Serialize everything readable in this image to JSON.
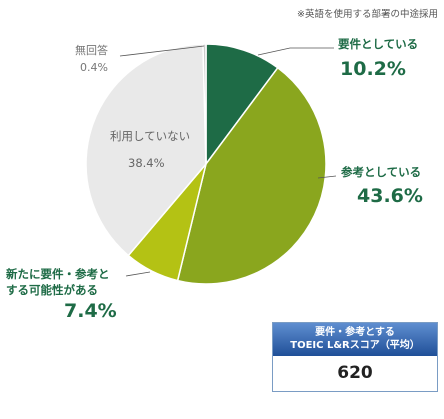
{
  "note": "※英語を使用する部署の中途採用",
  "chart_data": {
    "type": "pie",
    "slices": [
      {
        "label": "要件としている",
        "value": 10.2,
        "pct_text": "10.2%",
        "color": "#1e6b46"
      },
      {
        "label": "参考としている",
        "value": 43.6,
        "pct_text": "43.6%",
        "color": "#8aa61e"
      },
      {
        "label": "新たに要件・参考とする可能性がある",
        "label_line1": "新たに要件・参考と",
        "label_line2": "する可能性がある",
        "value": 7.4,
        "pct_text": "7.4%",
        "color": "#b4c214"
      },
      {
        "label": "利用していない",
        "value": 38.4,
        "pct_text": "38.4%",
        "color": "#e9e9e9"
      },
      {
        "label": "無回答",
        "value": 0.4,
        "pct_text": "0.4%",
        "color": "#cccccc"
      }
    ]
  },
  "score_box": {
    "title_line1": "要件・参考とする",
    "title_line2": "TOEIC L&Rスコア（平均）",
    "value": "620"
  }
}
